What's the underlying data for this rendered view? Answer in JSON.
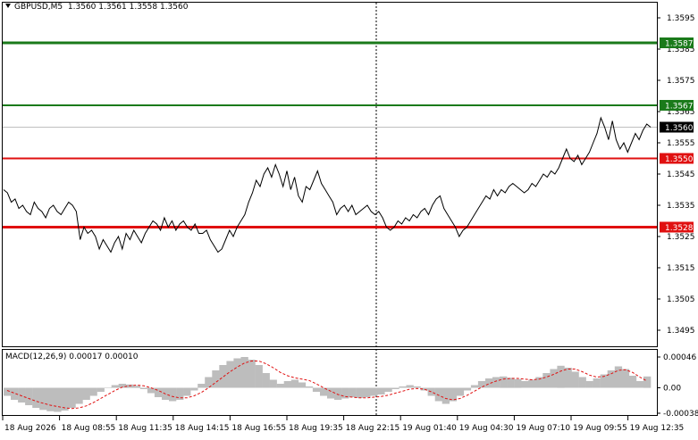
{
  "header": {
    "symbol": "GBPUSD,M5",
    "ohlc": "1.3560 1.3561 1.3558 1.3560"
  },
  "macd": {
    "label": "MACD(12,26,9) 0.00017 0.00010",
    "ticks": [
      "0.00046",
      "0.00",
      "-0.00038"
    ]
  },
  "price_axis": {
    "ticks": [
      "1.3595",
      "1.3585",
      "1.3575",
      "1.3565",
      "1.3555",
      "1.3545",
      "1.3535",
      "1.3525",
      "1.3515",
      "1.3505",
      "1.3495"
    ]
  },
  "levels": [
    {
      "name": "resistance-2",
      "value": 1.3587,
      "label": "1.3587",
      "color": "#1a7a1a"
    },
    {
      "name": "resistance-1",
      "value": 1.3567,
      "label": "1.3567",
      "color": "#1a7a1a"
    },
    {
      "name": "current",
      "value": 1.356,
      "label": "1.3560",
      "color": "#000000"
    },
    {
      "name": "support-1",
      "value": 1.355,
      "label": "1.3550",
      "color": "#e01010"
    },
    {
      "name": "support-2",
      "value": 1.3528,
      "label": "1.3528",
      "color": "#e01010"
    }
  ],
  "time_axis": {
    "labels": [
      "18 Aug 2026",
      "18 Aug 08:55",
      "18 Aug 11:35",
      "18 Aug 14:15",
      "18 Aug 16:55",
      "18 Aug 19:35",
      "18 Aug 22:15",
      "19 Aug 01:40",
      "19 Aug 04:30",
      "19 Aug 07:10",
      "19 Aug 09:55",
      "19 Aug 12:35"
    ]
  },
  "chart_data": {
    "type": "line",
    "price_range": [
      1.349,
      1.36
    ],
    "macd_range": [
      -0.00038,
      0.00046
    ],
    "price": [
      1.354,
      1.3539,
      1.3536,
      1.3537,
      1.3534,
      1.3535,
      1.3533,
      1.3532,
      1.3536,
      1.3534,
      1.3533,
      1.3531,
      1.3534,
      1.3535,
      1.3533,
      1.3532,
      1.3534,
      1.3536,
      1.3535,
      1.3533,
      1.3524,
      1.3528,
      1.3526,
      1.3527,
      1.3525,
      1.3521,
      1.3524,
      1.3522,
      1.352,
      1.3523,
      1.3525,
      1.3521,
      1.3526,
      1.3524,
      1.3527,
      1.3525,
      1.3523,
      1.3526,
      1.3528,
      1.353,
      1.3529,
      1.3527,
      1.3531,
      1.3528,
      1.353,
      1.3527,
      1.3529,
      1.353,
      1.3528,
      1.3527,
      1.3529,
      1.3526,
      1.3526,
      1.3527,
      1.3524,
      1.3522,
      1.352,
      1.3521,
      1.3524,
      1.3527,
      1.3525,
      1.3528,
      1.353,
      1.3532,
      1.3536,
      1.3539,
      1.3543,
      1.3541,
      1.3545,
      1.3547,
      1.3544,
      1.3548,
      1.3545,
      1.3541,
      1.3546,
      1.354,
      1.3544,
      1.3538,
      1.3536,
      1.3541,
      1.354,
      1.3543,
      1.3546,
      1.3542,
      1.354,
      1.3538,
      1.3536,
      1.3532,
      1.3534,
      1.3535,
      1.3533,
      1.3535,
      1.3532,
      1.3533,
      1.3534,
      1.3535,
      1.3533,
      1.3532,
      1.3533,
      1.3531,
      1.3528,
      1.3527,
      1.3528,
      1.353,
      1.3529,
      1.3531,
      1.353,
      1.3532,
      1.3531,
      1.3533,
      1.3534,
      1.3532,
      1.3535,
      1.3537,
      1.3538,
      1.3534,
      1.3532,
      1.353,
      1.3528,
      1.3525,
      1.3527,
      1.3528,
      1.353,
      1.3532,
      1.3534,
      1.3536,
      1.3538,
      1.3537,
      1.354,
      1.3538,
      1.354,
      1.3539,
      1.3541,
      1.3542,
      1.3541,
      1.354,
      1.3539,
      1.354,
      1.3542,
      1.3541,
      1.3543,
      1.3545,
      1.3544,
      1.3546,
      1.3545,
      1.3547,
      1.355,
      1.3553,
      1.355,
      1.3549,
      1.3551,
      1.3548,
      1.355,
      1.3552,
      1.3555,
      1.3558,
      1.3563,
      1.356,
      1.3556,
      1.3562,
      1.3556,
      1.3553,
      1.3555,
      1.3552,
      1.3555,
      1.3558,
      1.3556,
      1.3559,
      1.3561,
      1.356
    ],
    "macd_hist": [
      -0.00012,
      -0.00018,
      -0.00022,
      -0.00026,
      -0.0003,
      -0.00033,
      -0.00035,
      -0.00036,
      -0.00034,
      -0.0003,
      -0.00024,
      -0.00018,
      -0.00012,
      -6e-05,
      0.0,
      4e-05,
      6e-05,
      5e-05,
      3e-05,
      -2e-05,
      -8e-05,
      -0.00014,
      -0.00018,
      -0.0002,
      -0.00018,
      -0.00012,
      -4e-05,
      6e-05,
      0.00016,
      0.00026,
      0.00034,
      0.0004,
      0.00044,
      0.00046,
      0.00042,
      0.00034,
      0.00022,
      0.00012,
      6e-05,
      0.0001,
      0.00012,
      8e-05,
      2e-05,
      -6e-05,
      -0.00012,
      -0.00016,
      -0.00018,
      -0.00016,
      -0.00014,
      -0.00015,
      -0.00014,
      -0.00012,
      -0.0001,
      -6e-05,
      -2e-05,
      2e-05,
      4e-05,
      2e-05,
      -4e-05,
      -0.00012,
      -0.0002,
      -0.00024,
      -0.0002,
      -0.00012,
      -4e-05,
      4e-05,
      0.0001,
      0.00014,
      0.00016,
      0.00017,
      0.00015,
      0.00013,
      0.0001,
      0.00012,
      0.00016,
      0.00022,
      0.00028,
      0.00033,
      0.0003,
      0.00024,
      0.00016,
      0.0001,
      0.00014,
      0.0002,
      0.00026,
      0.00032,
      0.00028,
      0.00018,
      0.0001,
      0.00017
    ],
    "macd_signal": [
      -4e-05,
      -8e-05,
      -0.00012,
      -0.00016,
      -0.0002,
      -0.00023,
      -0.00026,
      -0.00028,
      -0.0003,
      -0.00031,
      -0.0003,
      -0.00027,
      -0.00022,
      -0.00016,
      -0.0001,
      -4e-05,
      1e-05,
      3e-05,
      4e-05,
      3e-05,
      0.0,
      -4e-05,
      -9e-05,
      -0.00013,
      -0.00015,
      -0.00015,
      -0.00012,
      -7e-05,
      0.0,
      8e-05,
      0.00016,
      0.00024,
      0.00031,
      0.00037,
      0.0004,
      0.0004,
      0.00036,
      0.0003,
      0.00023,
      0.00018,
      0.00015,
      0.00013,
      0.00011,
      6e-05,
      0.0,
      -5e-05,
      -0.0001,
      -0.00013,
      -0.00014,
      -0.00015,
      -0.00015,
      -0.00014,
      -0.00013,
      -0.00011,
      -8e-05,
      -5e-05,
      -2e-05,
      -1e-05,
      -2e-05,
      -6e-05,
      -0.00011,
      -0.00016,
      -0.00018,
      -0.00016,
      -0.00011,
      -5e-05,
      1e-05,
      6e-05,
      0.0001,
      0.00013,
      0.00014,
      0.00014,
      0.00013,
      0.00012,
      0.00013,
      0.00016,
      0.0002,
      0.00025,
      0.00028,
      0.00028,
      0.00024,
      0.00019,
      0.00016,
      0.00017,
      0.00021,
      0.00026,
      0.00027,
      0.00023,
      0.00016,
      0.0001
    ]
  }
}
